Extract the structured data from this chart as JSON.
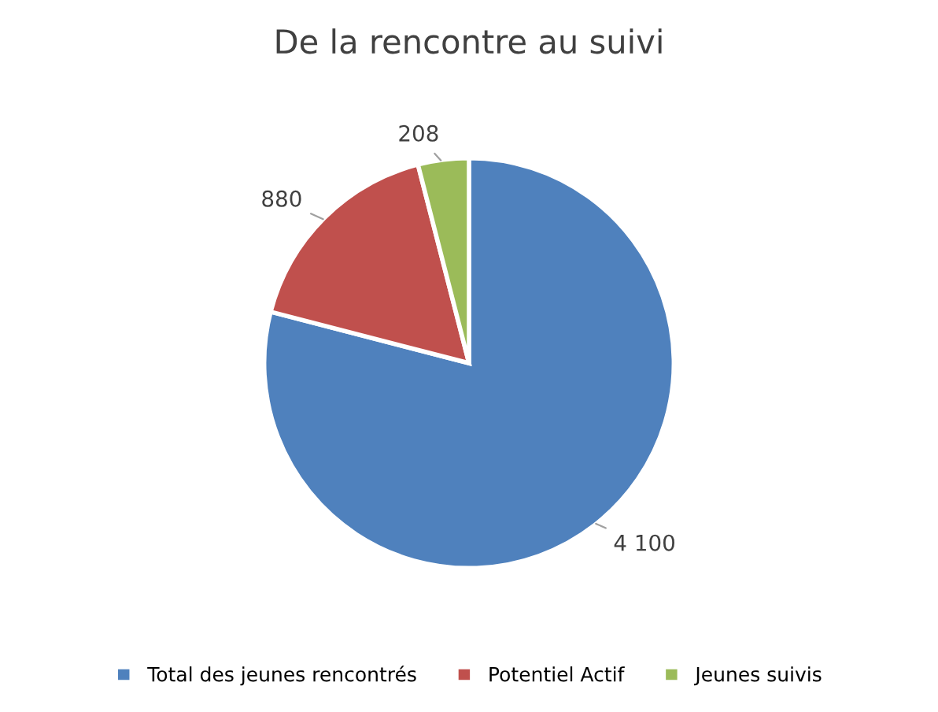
{
  "chart_data": {
    "type": "pie",
    "title": "De la rencontre au suivi",
    "categories": [
      "Total des jeunes rencontrés",
      "Potentiel Actif",
      "Jeunes suivis"
    ],
    "values": [
      4100,
      880,
      208
    ],
    "value_labels": [
      "4 100",
      "880",
      "208"
    ],
    "colors": [
      "#4f81bd",
      "#c0504d",
      "#9bbb59"
    ],
    "legend": "bottom"
  }
}
